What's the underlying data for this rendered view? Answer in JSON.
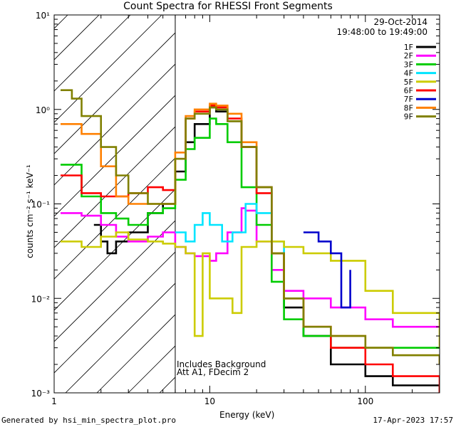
{
  "chart_data": {
    "type": "line",
    "title": "Count Spectra for RHESSI Front Segments",
    "xlabel": "Energy (keV)",
    "ylabel": "counts cm⁻² s⁻¹ keV⁻¹",
    "xscale": "log",
    "yscale": "log",
    "xlim": [
      1,
      300
    ],
    "ylim": [
      0.001,
      10
    ],
    "x_ticks": [
      1,
      10,
      100
    ],
    "x_tick_labels": [
      "1",
      "10",
      "100"
    ],
    "y_ticks": [
      0.001,
      0.01,
      0.1,
      1,
      10
    ],
    "y_tick_labels": [
      "10⁻³",
      "10⁻²",
      "10⁻¹",
      "10⁰",
      "10¹"
    ],
    "shaded_region": {
      "from": 1,
      "to": 6,
      "pattern": "diagonal-hatch"
    },
    "legend_position": "top-right",
    "series": [
      {
        "name": "1F",
        "color": "#000000",
        "x": [
          1.8,
          2.0,
          2.2,
          2.5,
          3.0,
          4.0,
          5.0,
          6.0,
          7.0,
          8.0,
          10.0,
          11.0,
          13.0,
          16.0,
          20.0,
          25.0,
          30.0,
          40.0,
          60.0,
          100.0,
          150.0,
          300.0
        ],
        "y": [
          0.06,
          0.04,
          0.03,
          0.04,
          0.05,
          0.08,
          0.1,
          0.22,
          0.45,
          0.7,
          1.05,
          0.95,
          0.75,
          0.4,
          0.15,
          0.03,
          0.008,
          0.004,
          0.002,
          0.0015,
          0.0012,
          0.001
        ]
      },
      {
        "name": "2F",
        "color": "#ff00ff",
        "x": [
          1.1,
          1.5,
          2.0,
          2.5,
          3.0,
          4.0,
          5.0,
          6.0,
          7.0,
          8.0,
          10.0,
          11.0,
          13.0,
          16.0,
          17.0,
          20.0,
          25.0,
          30.0,
          40.0,
          60.0,
          100.0,
          150.0,
          300.0
        ],
        "y": [
          0.08,
          0.075,
          0.06,
          0.045,
          0.04,
          0.045,
          0.05,
          0.035,
          0.03,
          0.028,
          0.025,
          0.03,
          0.05,
          0.09,
          0.085,
          0.04,
          0.02,
          0.012,
          0.01,
          0.008,
          0.006,
          0.005,
          0.005
        ]
      },
      {
        "name": "3F",
        "color": "#00cc00",
        "x": [
          1.1,
          1.5,
          2.0,
          2.5,
          3.0,
          4.0,
          5.0,
          6.0,
          7.0,
          8.0,
          10.0,
          11.0,
          13.0,
          16.0,
          20.0,
          25.0,
          30.0,
          40.0,
          60.0,
          100.0,
          150.0,
          300.0
        ],
        "y": [
          0.26,
          0.12,
          0.08,
          0.07,
          0.06,
          0.08,
          0.09,
          0.18,
          0.38,
          0.5,
          0.8,
          0.7,
          0.45,
          0.15,
          0.06,
          0.015,
          0.006,
          0.004,
          0.003,
          0.003,
          0.003,
          0.003
        ]
      },
      {
        "name": "4F",
        "color": "#00e5ff",
        "x": [
          6.0,
          7.0,
          8.0,
          9.0,
          10.0,
          12.0,
          14.0,
          17.0,
          20.0,
          25.0,
          30.0
        ],
        "y": [
          0.05,
          0.04,
          0.06,
          0.08,
          0.06,
          0.04,
          0.05,
          0.1,
          0.08,
          0.04,
          0.03
        ]
      },
      {
        "name": "5F",
        "color": "#cccc00",
        "x": [
          1.1,
          1.5,
          2.0,
          2.5,
          3.0,
          4.0,
          5.0,
          6.0,
          7.0,
          8.0,
          9.0,
          10.0,
          12.0,
          14.0,
          16.0,
          20.0,
          30.0,
          40.0,
          60.0,
          100.0,
          150.0,
          300.0
        ],
        "y": [
          0.04,
          0.035,
          0.045,
          0.05,
          0.042,
          0.04,
          0.038,
          0.035,
          0.03,
          0.004,
          0.03,
          0.01,
          0.01,
          0.007,
          0.035,
          0.04,
          0.035,
          0.03,
          0.025,
          0.012,
          0.007,
          0.003
        ]
      },
      {
        "name": "6F",
        "color": "#ff0000",
        "x": [
          1.1,
          1.5,
          2.0,
          2.5,
          3.0,
          4.0,
          5.0,
          6.0,
          7.0,
          8.0,
          10.0,
          11.0,
          13.0,
          16.0,
          20.0,
          25.0,
          30.0,
          40.0,
          60.0,
          100.0,
          150.0,
          300.0
        ],
        "y": [
          0.2,
          0.13,
          0.12,
          0.12,
          0.13,
          0.15,
          0.14,
          0.3,
          0.8,
          0.95,
          1.1,
          1.05,
          0.8,
          0.4,
          0.13,
          0.03,
          0.01,
          0.005,
          0.003,
          0.002,
          0.0015,
          0.001
        ]
      },
      {
        "name": "7F",
        "color": "#0000cc",
        "x": [
          40.0,
          50.0,
          60.0,
          70.0,
          80.0
        ],
        "y": [
          0.05,
          0.04,
          0.03,
          0.008,
          0.02
        ]
      },
      {
        "name": "8F",
        "color": "#ff8000",
        "x": [
          1.1,
          1.5,
          2.0,
          2.5,
          3.0,
          4.0,
          5.0,
          6.0,
          7.0,
          8.0,
          10.0,
          11.0,
          13.0,
          16.0,
          20.0,
          25.0,
          30.0,
          40.0,
          60.0,
          100.0,
          150.0,
          300.0
        ],
        "y": [
          0.7,
          0.55,
          0.25,
          0.12,
          0.1,
          0.1,
          0.1,
          0.35,
          0.85,
          1.0,
          1.15,
          1.1,
          0.9,
          0.45,
          0.15,
          0.03,
          0.01,
          0.005,
          0.004,
          0.003,
          0.0025,
          0.002
        ]
      },
      {
        "name": "9F",
        "color": "#808000",
        "x": [
          1.1,
          1.3,
          1.5,
          2.0,
          2.5,
          3.0,
          4.0,
          5.0,
          6.0,
          7.0,
          8.0,
          10.0,
          11.0,
          13.0,
          16.0,
          20.0,
          25.0,
          30.0,
          40.0,
          60.0,
          100.0,
          150.0,
          300.0
        ],
        "y": [
          1.6,
          1.3,
          0.85,
          0.4,
          0.2,
          0.13,
          0.1,
          0.1,
          0.3,
          0.8,
          0.9,
          1.05,
          1.0,
          0.75,
          0.4,
          0.15,
          0.03,
          0.01,
          0.005,
          0.004,
          0.003,
          0.0025,
          0.002
        ]
      }
    ],
    "annotations": [
      "29-Oct-2014",
      "19:48:00 to 19:49:00",
      "Includes Background",
      "Att A1, FDecim 2"
    ]
  },
  "footer": {
    "left": "Generated by hsi_min_spectra_plot.pro",
    "right": "17-Apr-2023 17:57"
  }
}
